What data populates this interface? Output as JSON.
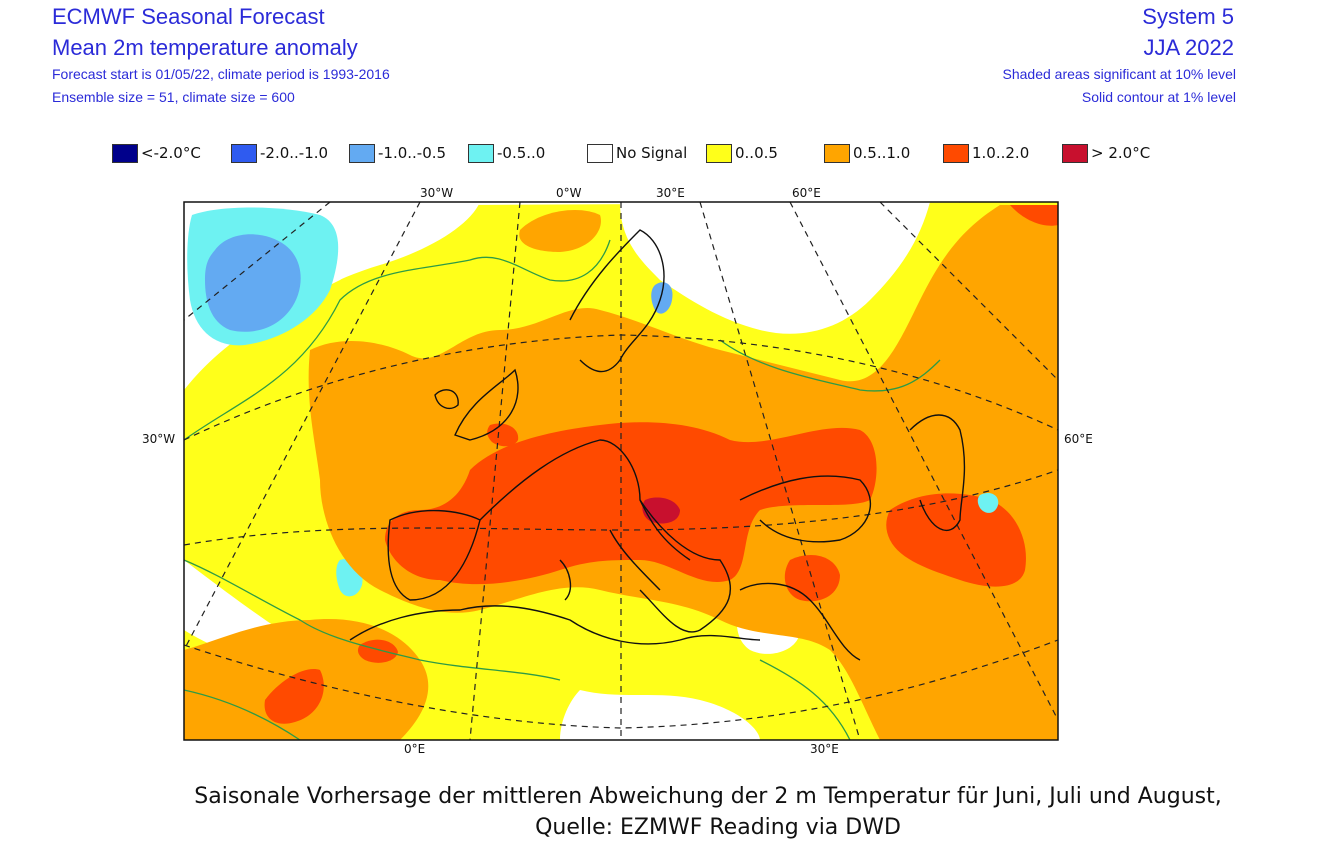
{
  "header": {
    "title": "ECMWF Seasonal Forecast",
    "subtitle": "Mean 2m temperature anomaly",
    "info_line1": "Forecast start is 01/05/22, climate period is 1993-2016",
    "info_line2": "Ensemble size = 51, climate size = 600",
    "system": "System 5",
    "season": "JJA 2022",
    "note1": "Shaded areas significant at 10% level",
    "note2": "Solid contour at 1% level"
  },
  "legend": [
    {
      "label": "<-2.0°C",
      "color": "#00008b"
    },
    {
      "label": "-2.0..-1.0",
      "color": "#2f5bf0"
    },
    {
      "label": "-1.0..-0.5",
      "color": "#63aaf2"
    },
    {
      "label": "-0.5..0",
      "color": "#6ef2f2"
    },
    {
      "label": "No Signal",
      "color": "#ffffff"
    },
    {
      "label": "0..0.5",
      "color": "#ffff1a"
    },
    {
      "label": "0.5..1.0",
      "color": "#ffa500"
    },
    {
      "label": "1.0..2.0",
      "color": "#ff4a00"
    },
    {
      "label": "> 2.0°C",
      "color": "#c8102e"
    }
  ],
  "map_labels": {
    "top": [
      "30°W",
      "0°W",
      "30°E",
      "60°E"
    ],
    "left": "30°W",
    "right": "60°E",
    "bottom": [
      "0°E",
      "30°E"
    ]
  },
  "caption": {
    "line1": "Saisonale Vorhersage der mittleren Abweichung der 2 m Temperatur für Juni, Juli und August,",
    "line2": "Quelle: EZMWF Reading via DWD"
  }
}
